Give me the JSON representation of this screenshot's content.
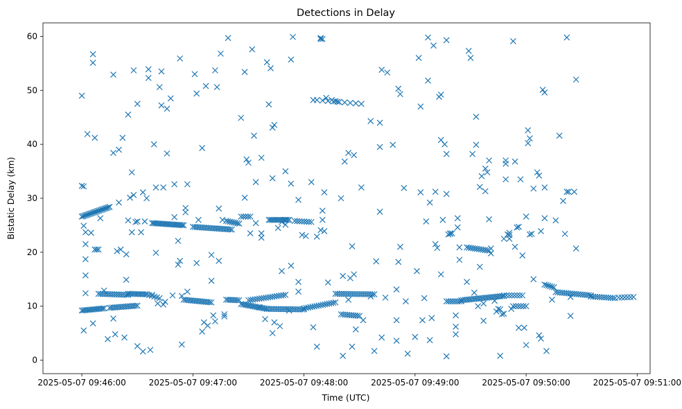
{
  "chart_data": {
    "type": "scatter",
    "title": "Detections in Delay",
    "xlabel": "Time (UTC)",
    "ylabel": "Bistatic Delay (km)",
    "marker": "x",
    "color": "#1f77b4",
    "xlim_seconds": [
      -21,
      307
    ],
    "ylim": [
      -2.5,
      62.5
    ],
    "x_ticks": [
      {
        "t": 0,
        "label": "2025-05-07 09:46:00"
      },
      {
        "t": 60,
        "label": "2025-05-07 09:47:00"
      },
      {
        "t": 120,
        "label": "2025-05-07 09:48:00"
      },
      {
        "t": 180,
        "label": "2025-05-07 09:49:00"
      },
      {
        "t": 240,
        "label": "2025-05-07 09:50:00"
      },
      {
        "t": 300,
        "label": "2025-05-07 09:51:00"
      }
    ],
    "y_ticks": [
      {
        "v": 0,
        "label": "0"
      },
      {
        "v": 10,
        "label": "10"
      },
      {
        "v": 20,
        "label": "20"
      },
      {
        "v": 30,
        "label": "30"
      },
      {
        "v": 40,
        "label": "40"
      },
      {
        "v": 50,
        "label": "50"
      },
      {
        "v": 60,
        "label": "60"
      }
    ],
    "tracks": [
      {
        "name": "track-a",
        "t0": 0,
        "v0": 26.6,
        "t1": 15,
        "v1": 28.4,
        "n": 22
      },
      {
        "name": "track-b",
        "t0": 38,
        "v0": 25.4,
        "t1": 55,
        "v1": 25.0,
        "n": 22
      },
      {
        "name": "track-c",
        "t0": 60,
        "v0": 24.7,
        "t1": 81,
        "v1": 24.2,
        "n": 22
      },
      {
        "name": "track-d",
        "t0": 78,
        "v0": 25.8,
        "t1": 85,
        "v1": 25.3,
        "n": 8
      },
      {
        "name": "track-e",
        "t0": 86,
        "v0": 26.6,
        "t1": 91,
        "v1": 26.6,
        "n": 5
      },
      {
        "name": "track-f",
        "t0": 101,
        "v0": 26.0,
        "t1": 112,
        "v1": 26.0,
        "n": 14
      },
      {
        "name": "track-g",
        "t0": 115,
        "v0": 25.8,
        "t1": 124,
        "v1": 25.6,
        "n": 8
      },
      {
        "name": "track-h",
        "t0": 127,
        "v0": 48.2,
        "t1": 151,
        "v1": 47.5,
        "n": 9
      },
      {
        "name": "track-i",
        "t0": 208,
        "v0": 20.9,
        "t1": 220,
        "v1": 20.3,
        "n": 12
      },
      {
        "name": "track-j",
        "t0": 0,
        "v0": 9.2,
        "t1": 12,
        "v1": 9.6,
        "n": 15
      },
      {
        "name": "track-k",
        "t0": 9,
        "v0": 12.3,
        "t1": 25,
        "v1": 12.1,
        "n": 16
      },
      {
        "name": "track-l",
        "t0": 15,
        "v0": 9.7,
        "t1": 30,
        "v1": 10.1,
        "n": 16
      },
      {
        "name": "track-m",
        "t0": 25,
        "v0": 12.3,
        "t1": 35,
        "v1": 12.2,
        "n": 12
      },
      {
        "name": "track-n",
        "t0": 35,
        "v0": 12.2,
        "t1": 42,
        "v1": 11.5,
        "n": 6
      },
      {
        "name": "track-o",
        "t0": 55,
        "v0": 11.2,
        "t1": 70,
        "v1": 10.7,
        "n": 16
      },
      {
        "name": "track-p",
        "t0": 78,
        "v0": 11.2,
        "t1": 85,
        "v1": 11.1,
        "n": 8
      },
      {
        "name": "track-q",
        "t0": 86,
        "v0": 10.4,
        "t1": 100,
        "v1": 9.5,
        "n": 16
      },
      {
        "name": "track-r",
        "t0": 90,
        "v0": 11.1,
        "t1": 110,
        "v1": 12.1,
        "n": 18
      },
      {
        "name": "track-s",
        "t0": 100,
        "v0": 9.5,
        "t1": 120,
        "v1": 9.4,
        "n": 20
      },
      {
        "name": "track-t",
        "t0": 120,
        "v0": 9.6,
        "t1": 137,
        "v1": 10.7,
        "n": 16
      },
      {
        "name": "track-u",
        "t0": 137,
        "v0": 12.3,
        "t1": 158,
        "v1": 12.2,
        "n": 20
      },
      {
        "name": "track-v",
        "t0": 140,
        "v0": 8.5,
        "t1": 150,
        "v1": 8.2,
        "n": 10
      },
      {
        "name": "track-w",
        "t0": 197,
        "v0": 10.9,
        "t1": 205,
        "v1": 10.9,
        "n": 8
      },
      {
        "name": "track-x",
        "t0": 205,
        "v0": 11.1,
        "t1": 228,
        "v1": 11.9,
        "n": 24
      },
      {
        "name": "track-y",
        "t0": 228,
        "v0": 12.0,
        "t1": 238,
        "v1": 12.0,
        "n": 8
      },
      {
        "name": "track-z",
        "t0": 233,
        "v0": 10.0,
        "t1": 240,
        "v1": 10.0,
        "n": 6
      },
      {
        "name": "track-aa",
        "t0": 250,
        "v0": 14.0,
        "t1": 255,
        "v1": 13.5,
        "n": 6
      },
      {
        "name": "track-ab",
        "t0": 256,
        "v0": 12.6,
        "t1": 275,
        "v1": 12.0,
        "n": 18
      },
      {
        "name": "track-ac",
        "t0": 275,
        "v0": 11.8,
        "t1": 288,
        "v1": 11.5,
        "n": 12
      },
      {
        "name": "track-ad",
        "t0": 290,
        "v0": 11.6,
        "t1": 298,
        "v1": 11.7,
        "n": 6
      }
    ],
    "points": [
      [
        0,
        49.0
      ],
      [
        0,
        32.3
      ],
      [
        1,
        32.2
      ],
      [
        2,
        21.5
      ],
      [
        1,
        24.9
      ],
      [
        2,
        23.7
      ],
      [
        2,
        12.4
      ],
      [
        1,
        5.5
      ],
      [
        2,
        15.7
      ],
      [
        2,
        18.7
      ],
      [
        3,
        41.9
      ],
      [
        5,
        23.6
      ],
      [
        6,
        6.8
      ],
      [
        6,
        56.7
      ],
      [
        6,
        55.1
      ],
      [
        7,
        41.2
      ],
      [
        7,
        20.5
      ],
      [
        8,
        20.5
      ],
      [
        9,
        20.5
      ],
      [
        10,
        26.3
      ],
      [
        12,
        12.9
      ],
      [
        14,
        3.9
      ],
      [
        17,
        52.9
      ],
      [
        17,
        38.4
      ],
      [
        17,
        7.7
      ],
      [
        18,
        4.8
      ],
      [
        19,
        20.2
      ],
      [
        20,
        29.2
      ],
      [
        20,
        39.0
      ],
      [
        21,
        20.5
      ],
      [
        23,
        4.2
      ],
      [
        22,
        41.2
      ],
      [
        24,
        14.9
      ],
      [
        24,
        19.6
      ],
      [
        25,
        25.9
      ],
      [
        25,
        45.5
      ],
      [
        26,
        30.1
      ],
      [
        27,
        23.7
      ],
      [
        27,
        34.8
      ],
      [
        28,
        53.7
      ],
      [
        28,
        30.6
      ],
      [
        29,
        25.6
      ],
      [
        30,
        47.5
      ],
      [
        30,
        2.6
      ],
      [
        30,
        25.7
      ],
      [
        32,
        23.7
      ],
      [
        33,
        31.1
      ],
      [
        33,
        1.6
      ],
      [
        34,
        25.7
      ],
      [
        35,
        30.0
      ],
      [
        36,
        53.9
      ],
      [
        36,
        52.3
      ],
      [
        37,
        1.9
      ],
      [
        38,
        12.1
      ],
      [
        39,
        40.0
      ],
      [
        40,
        32.0
      ],
      [
        40,
        19.9
      ],
      [
        41,
        10.5
      ],
      [
        42,
        50.6
      ],
      [
        43,
        47.2
      ],
      [
        43,
        53.5
      ],
      [
        44,
        32.0
      ],
      [
        44,
        10.3
      ],
      [
        45,
        10.8
      ],
      [
        46,
        38.3
      ],
      [
        46,
        46.6
      ],
      [
        48,
        48.5
      ],
      [
        49,
        12.0
      ],
      [
        50,
        26.5
      ],
      [
        50,
        32.6
      ],
      [
        52,
        17.7
      ],
      [
        52,
        22.1
      ],
      [
        53,
        55.9
      ],
      [
        53,
        18.4
      ],
      [
        54,
        2.9
      ],
      [
        54,
        11.9
      ],
      [
        56,
        27.4
      ],
      [
        56,
        28.2
      ],
      [
        57,
        32.6
      ],
      [
        57,
        12.7
      ],
      [
        61,
        53.0
      ],
      [
        62,
        18.0
      ],
      [
        62,
        49.4
      ],
      [
        63,
        26.0
      ],
      [
        65,
        39.3
      ],
      [
        65,
        5.3
      ],
      [
        66,
        7.0
      ],
      [
        67,
        50.8
      ],
      [
        68,
        6.4
      ],
      [
        70,
        14.7
      ],
      [
        70,
        19.5
      ],
      [
        71,
        8.3
      ],
      [
        72,
        7.2
      ],
      [
        72,
        53.7
      ],
      [
        73,
        50.6
      ],
      [
        74,
        18.4
      ],
      [
        74,
        28.1
      ],
      [
        75,
        56.8
      ],
      [
        76,
        26.0
      ],
      [
        77,
        8.5
      ],
      [
        77,
        8.1
      ],
      [
        79,
        59.7
      ],
      [
        86,
        44.9
      ],
      [
        88,
        53.4
      ],
      [
        88,
        30.1
      ],
      [
        89,
        37.2
      ],
      [
        90,
        36.6
      ],
      [
        91,
        23.5
      ],
      [
        92,
        57.6
      ],
      [
        93,
        41.6
      ],
      [
        94,
        33.0
      ],
      [
        94,
        25.4
      ],
      [
        96,
        9.8
      ],
      [
        97,
        37.5
      ],
      [
        97,
        23.5
      ],
      [
        97,
        22.7
      ],
      [
        99,
        7.6
      ],
      [
        100,
        55.2
      ],
      [
        101,
        47.4
      ],
      [
        102,
        54.1
      ],
      [
        103,
        43.1
      ],
      [
        104,
        43.6
      ],
      [
        103,
        33.7
      ],
      [
        103,
        5.0
      ],
      [
        104,
        7.0
      ],
      [
        106,
        24.5
      ],
      [
        107,
        6.3
      ],
      [
        108,
        16.5
      ],
      [
        108,
        25.6
      ],
      [
        110,
        35.0
      ],
      [
        110,
        26.0
      ],
      [
        110,
        25.1
      ],
      [
        112,
        9.2
      ],
      [
        113,
        32.7
      ],
      [
        113,
        17.5
      ],
      [
        113,
        55.7
      ],
      [
        114,
        59.9
      ],
      [
        117,
        14.5
      ],
      [
        117,
        12.7
      ],
      [
        117,
        29.7
      ],
      [
        119,
        23.2
      ],
      [
        121,
        23.0
      ],
      [
        124,
        33.0
      ],
      [
        125,
        6.1
      ],
      [
        125,
        48.2
      ],
      [
        127,
        22.9
      ],
      [
        127,
        2.5
      ],
      [
        129,
        59.7
      ],
      [
        129,
        59.5
      ],
      [
        130,
        59.5
      ],
      [
        129,
        24.1
      ],
      [
        130,
        27.7
      ],
      [
        130,
        26.0
      ],
      [
        131,
        23.9
      ],
      [
        131,
        31.1
      ],
      [
        132,
        48.6
      ],
      [
        133,
        14.4
      ],
      [
        135,
        48.2
      ],
      [
        137,
        48.0
      ],
      [
        138,
        47.9
      ],
      [
        140,
        30.0
      ],
      [
        141,
        15.6
      ],
      [
        141,
        0.8
      ],
      [
        142,
        36.8
      ],
      [
        144,
        11.2
      ],
      [
        144,
        38.4
      ],
      [
        145,
        15.2
      ],
      [
        146,
        2.5
      ],
      [
        146,
        21.1
      ],
      [
        147,
        15.9
      ],
      [
        147,
        38.0
      ],
      [
        148,
        5.7
      ],
      [
        151,
        32.0
      ],
      [
        152,
        7.4
      ],
      [
        156,
        44.3
      ],
      [
        156,
        11.8
      ],
      [
        158,
        1.7
      ],
      [
        159,
        18.3
      ],
      [
        161,
        27.5
      ],
      [
        161,
        39.5
      ],
      [
        161,
        44.0
      ],
      [
        162,
        4.2
      ],
      [
        162,
        53.8
      ],
      [
        164,
        11.6
      ],
      [
        165,
        53.3
      ],
      [
        168,
        39.9
      ],
      [
        170,
        3.6
      ],
      [
        170,
        7.4
      ],
      [
        170,
        13.1
      ],
      [
        171,
        18.2
      ],
      [
        171,
        50.3
      ],
      [
        172,
        49.3
      ],
      [
        172,
        21.0
      ],
      [
        174,
        31.9
      ],
      [
        175,
        10.9
      ],
      [
        176,
        1.2
      ],
      [
        180,
        4.3
      ],
      [
        181,
        16.5
      ],
      [
        182,
        56.0
      ],
      [
        183,
        47.0
      ],
      [
        183,
        31.1
      ],
      [
        184,
        7.4
      ],
      [
        185,
        11.5
      ],
      [
        186,
        25.7
      ],
      [
        187,
        51.8
      ],
      [
        187,
        59.8
      ],
      [
        188,
        29.2
      ],
      [
        188,
        3.7
      ],
      [
        189,
        7.8
      ],
      [
        190,
        58.3
      ],
      [
        191,
        31.2
      ],
      [
        191,
        21.5
      ],
      [
        192,
        20.8
      ],
      [
        193,
        48.8
      ],
      [
        194,
        49.2
      ],
      [
        194,
        15.9
      ],
      [
        194,
        40.8
      ],
      [
        195,
        26.0
      ],
      [
        196,
        40.0
      ],
      [
        197,
        59.3
      ],
      [
        197,
        38.2
      ],
      [
        197,
        30.8
      ],
      [
        197,
        0.7
      ],
      [
        198,
        23.3
      ],
      [
        199,
        23.4
      ],
      [
        199,
        23.5
      ],
      [
        200,
        23.5
      ],
      [
        202,
        6.2
      ],
      [
        202,
        4.8
      ],
      [
        202,
        8.3
      ],
      [
        203,
        26.3
      ],
      [
        203,
        24.6
      ],
      [
        204,
        20.9
      ],
      [
        204,
        18.6
      ],
      [
        208,
        14.5
      ],
      [
        209,
        57.3
      ],
      [
        210,
        56.0
      ],
      [
        211,
        38.2
      ],
      [
        212,
        12.5
      ],
      [
        213,
        45.1
      ],
      [
        213,
        39.9
      ],
      [
        214,
        10.0
      ],
      [
        215,
        17.3
      ],
      [
        215,
        32.1
      ],
      [
        216,
        34.1
      ],
      [
        217,
        7.3
      ],
      [
        217,
        10.5
      ],
      [
        218,
        31.3
      ],
      [
        218,
        35.5
      ],
      [
        219,
        34.8
      ],
      [
        220,
        37.0
      ],
      [
        220,
        26.1
      ],
      [
        221,
        20.7
      ],
      [
        221,
        19.8
      ],
      [
        223,
        11.0
      ],
      [
        224,
        9.0
      ],
      [
        225,
        9.5
      ],
      [
        226,
        9.4
      ],
      [
        227,
        8.5
      ],
      [
        228,
        8.6
      ],
      [
        226,
        0.8
      ],
      [
        228,
        22.5
      ],
      [
        229,
        37.0
      ],
      [
        229,
        36.4
      ],
      [
        229,
        33.5
      ],
      [
        230,
        23.3
      ],
      [
        231,
        23.6
      ],
      [
        231,
        23.2
      ],
      [
        231,
        22.5
      ],
      [
        232,
        9.5
      ],
      [
        233,
        59.1
      ],
      [
        234,
        36.8
      ],
      [
        234,
        21.0
      ],
      [
        235,
        24.6
      ],
      [
        236,
        24.7
      ],
      [
        236,
        24.7
      ],
      [
        236,
        6.0
      ],
      [
        237,
        33.5
      ],
      [
        238,
        19.4
      ],
      [
        239,
        6.0
      ],
      [
        240,
        2.8
      ],
      [
        240,
        26.6
      ],
      [
        241,
        40.2
      ],
      [
        241,
        42.6
      ],
      [
        242,
        41.1
      ],
      [
        242,
        23.3
      ],
      [
        243,
        23.4
      ],
      [
        244,
        15.0
      ],
      [
        244,
        31.8
      ],
      [
        246,
        34.8
      ],
      [
        247,
        34.2
      ],
      [
        247,
        4.6
      ],
      [
        248,
        4.0
      ],
      [
        248,
        23.9
      ],
      [
        249,
        50.1
      ],
      [
        250,
        49.6
      ],
      [
        250,
        26.3
      ],
      [
        250,
        32.0
      ],
      [
        251,
        1.7
      ],
      [
        254,
        11.2
      ],
      [
        256,
        25.9
      ],
      [
        258,
        41.6
      ],
      [
        260,
        29.5
      ],
      [
        261,
        23.4
      ],
      [
        262,
        59.8
      ],
      [
        262,
        31.2
      ],
      [
        263,
        31.2
      ],
      [
        264,
        11.7
      ],
      [
        264,
        8.2
      ],
      [
        266,
        31.2
      ],
      [
        267,
        52.0
      ],
      [
        267,
        20.7
      ]
    ]
  }
}
